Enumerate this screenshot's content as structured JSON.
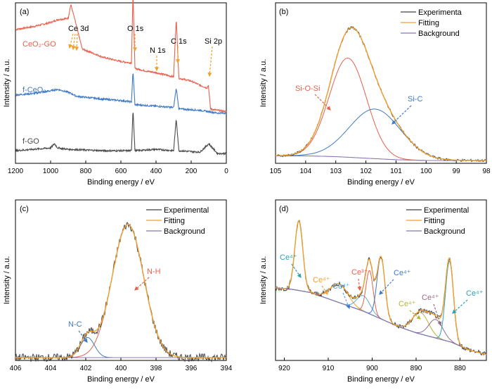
{
  "panels": {
    "a": {
      "label": "(a)",
      "xlabel": "Binding energy / eV",
      "ylabel": "Intensity / a.u.",
      "xlim": [
        1200,
        0
      ],
      "xticks": [
        "1200",
        "1000",
        "800",
        "600",
        "400",
        "200",
        "0"
      ],
      "series": [
        {
          "name": "CeO₂-GO",
          "color": "#e8604c"
        },
        {
          "name": "f-CeO₂",
          "color": "#3f7ac4"
        },
        {
          "name": "f-GO",
          "color": "#4a4a4a"
        }
      ],
      "peak_labels": [
        "Ce 3d",
        "O 1s",
        "N 1s",
        "C 1s",
        "Si 2p"
      ],
      "peak_positions_eV": {
        "Ce 3d": 885,
        "O 1s": 531,
        "N 1s": 400,
        "C 1s": 285,
        "Si 2p": 102
      }
    },
    "b": {
      "label": "(b)",
      "xlabel": "Binding energy / eV",
      "ylabel": "Intensity / a.u.",
      "xlim": [
        105,
        98
      ],
      "xticks": [
        "105",
        "104",
        "103",
        "102",
        "101",
        "100",
        "99",
        "98"
      ],
      "legend": [
        "Experimenta",
        "Fitting",
        "Background"
      ],
      "annotations": [
        "Si-O-Si",
        "Si-C"
      ],
      "peak_centers_eV": {
        "Si-O-Si": 102.6,
        "Si-C": 101.7
      }
    },
    "c": {
      "label": "(c)",
      "xlabel": "Binding energy / eV",
      "ylabel": "Intensity / a.u.",
      "xlim": [
        406,
        394
      ],
      "xticks": [
        "406",
        "404",
        "402",
        "400",
        "398",
        "396",
        "394"
      ],
      "legend": [
        "Experimental",
        "Fitting",
        "Background"
      ],
      "annotations": [
        "N-H",
        "N-C"
      ],
      "peak_centers_eV": {
        "N-H": 399.6,
        "N-C": 401.9
      }
    },
    "d": {
      "label": "(d)",
      "xlabel": "Binding energy / eV",
      "ylabel": "Intensity / a.u.",
      "xlim": [
        922,
        874
      ],
      "xticks": [
        "920",
        "910",
        "900",
        "890",
        "880"
      ],
      "legend": [
        "Experimental",
        "Fitting",
        "Background"
      ],
      "annotations": [
        "Ce⁴⁺",
        "Ce⁴⁺",
        "Ce⁴⁺",
        "Ce³⁺",
        "Ce⁴⁺",
        "Ce⁴⁺",
        "Ce⁴⁺",
        "Ce⁴⁺"
      ],
      "peak_centers_eV": [
        916.7,
        907.5,
        902.0,
        900.6,
        898.0,
        889.0,
        885.5,
        882.4
      ]
    }
  },
  "colors": {
    "experimental": "#404040",
    "fitting": "#f0a030",
    "background": "#8c78b8",
    "component_red": "#e8604c",
    "component_blue": "#3f7ac4"
  },
  "chart_data": [
    {
      "type": "line",
      "title": "(a)",
      "xlabel": "Binding energy / eV",
      "ylabel": "Intensity / a.u.",
      "xlim": [
        1200,
        0
      ],
      "series": [
        {
          "name": "CeO₂-GO",
          "x": [
            1200,
            1100,
            1000,
            960,
            900,
            885,
            860,
            820,
            700,
            600,
            540,
            531,
            520,
            450,
            400,
            300,
            285,
            270,
            200,
            150,
            110,
            102,
            90,
            50,
            0
          ],
          "y": [
            0.92,
            0.94,
            0.97,
            0.99,
            1.0,
            1.1,
            0.98,
            0.78,
            0.72,
            0.69,
            0.68,
            1.18,
            0.64,
            0.62,
            0.61,
            0.58,
            1.0,
            0.57,
            0.55,
            0.52,
            0.5,
            0.52,
            0.35,
            0.34,
            0.33
          ]
        },
        {
          "name": "f-CeO₂",
          "x": [
            1200,
            1100,
            1000,
            960,
            900,
            850,
            700,
            600,
            540,
            531,
            520,
            400,
            300,
            285,
            270,
            150,
            100,
            50,
            0
          ],
          "y": [
            0.45,
            0.46,
            0.48,
            0.49,
            0.47,
            0.44,
            0.42,
            0.41,
            0.4,
            0.62,
            0.38,
            0.37,
            0.36,
            0.5,
            0.35,
            0.34,
            0.33,
            0.32,
            0.32
          ]
        },
        {
          "name": "f-GO",
          "x": [
            1200,
            1100,
            1000,
            978,
            960,
            900,
            700,
            600,
            540,
            531,
            520,
            400,
            300,
            285,
            270,
            150,
            100,
            50,
            0
          ],
          "y": [
            0.05,
            0.06,
            0.07,
            0.1,
            0.07,
            0.06,
            0.05,
            0.05,
            0.05,
            0.35,
            0.05,
            0.06,
            0.05,
            0.28,
            0.05,
            0.04,
            0.1,
            0.03,
            0.03
          ]
        }
      ]
    },
    {
      "type": "line",
      "title": "(b)",
      "xlabel": "Binding energy / eV",
      "ylabel": "Intensity / a.u.",
      "xlim": [
        105,
        98
      ],
      "series": [
        {
          "name": "Si-O-Si",
          "model": "gaussian",
          "center": 102.6,
          "height": 0.64,
          "sigma": 0.62
        },
        {
          "name": "Si-C",
          "model": "gaussian",
          "center": 101.7,
          "height": 0.32,
          "sigma": 0.85
        },
        {
          "name": "Background",
          "x": [
            105,
            104,
            103,
            102,
            101,
            100,
            99,
            98
          ],
          "y": [
            0.03,
            0.03,
            0.025,
            0.015,
            0.005,
            0.0,
            0.0,
            0.0
          ]
        }
      ]
    },
    {
      "type": "line",
      "title": "(c)",
      "xlabel": "Binding energy / eV",
      "ylabel": "Intensity / a.u.",
      "xlim": [
        406,
        394
      ],
      "series": [
        {
          "name": "N-H",
          "model": "gaussian",
          "center": 399.6,
          "height": 0.86,
          "sigma": 0.9
        },
        {
          "name": "N-C",
          "model": "gaussian",
          "center": 401.9,
          "height": 0.13,
          "sigma": 0.4
        },
        {
          "name": "Background",
          "x": [
            406,
            394
          ],
          "y": [
            0.0,
            0.0
          ]
        }
      ]
    },
    {
      "type": "line",
      "title": "(d)",
      "xlabel": "Binding energy / eV",
      "ylabel": "Intensity / a.u.",
      "xlim": [
        922,
        874
      ],
      "series": [
        {
          "name": "Background",
          "x": [
            922,
            918,
            914,
            910,
            906,
            902,
            898,
            894,
            890,
            886,
            882,
            878,
            874
          ],
          "y": [
            0.45,
            0.44,
            0.42,
            0.38,
            0.34,
            0.3,
            0.25,
            0.2,
            0.16,
            0.13,
            0.1,
            0.05,
            0.02
          ]
        },
        {
          "name": "Ce⁴⁺ 916.7",
          "model": "gaussian",
          "center": 916.7,
          "height": 0.45,
          "sigma": 0.9
        },
        {
          "name": "Ce⁴⁺ 907.5",
          "model": "gaussian",
          "center": 907.5,
          "height": 0.12,
          "sigma": 2.0
        },
        {
          "name": "Ce⁴⁺ 902.0",
          "model": "gaussian",
          "center": 902.0,
          "height": 0.1,
          "sigma": 1.5
        },
        {
          "name": "Ce³⁺ 900.6",
          "model": "gaussian",
          "center": 900.6,
          "height": 0.28,
          "sigma": 0.8
        },
        {
          "name": "Ce⁴⁺ 898.0",
          "model": "gaussian",
          "center": 898.0,
          "height": 0.4,
          "sigma": 0.9
        },
        {
          "name": "Ce⁴⁺ 889.0",
          "model": "gaussian",
          "center": 889.0,
          "height": 0.14,
          "sigma": 1.8
        },
        {
          "name": "Ce⁴⁺ 885.5",
          "model": "gaussian",
          "center": 885.5,
          "height": 0.12,
          "sigma": 1.6
        },
        {
          "name": "Ce⁴⁺ 882.4",
          "model": "gaussian",
          "center": 882.4,
          "height": 0.52,
          "sigma": 0.9
        }
      ]
    }
  ]
}
